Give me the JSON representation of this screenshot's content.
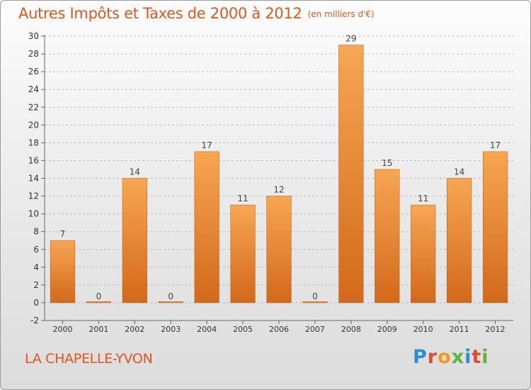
{
  "header": {
    "title": "Autres Impôts et Taxes de 2000 à 2012",
    "unit": "(en milliers d'€)"
  },
  "footer": {
    "commune": "LA CHAPELLE-YVON",
    "logo": "Proxiti",
    "logo_colors": [
      "#2a8fd6",
      "#e8482b",
      "#f39a1e",
      "#5fb33a",
      "#2a8fd6",
      "#e8482b",
      "#5fb33a"
    ]
  },
  "chart_data": {
    "type": "bar",
    "categories": [
      "2000",
      "2001",
      "2002",
      "2003",
      "2004",
      "2005",
      "2006",
      "2007",
      "2008",
      "2009",
      "2010",
      "2011",
      "2012"
    ],
    "values": [
      7,
      0,
      14,
      0,
      17,
      11,
      12,
      0,
      29,
      15,
      11,
      14,
      17
    ],
    "title": "Autres Impôts et Taxes de 2000 à 2012",
    "subtitle": "(en milliers d'€)",
    "ylim": [
      -2,
      30
    ],
    "yticks": [
      -2,
      0,
      2,
      4,
      6,
      8,
      10,
      12,
      14,
      16,
      18,
      20,
      22,
      24,
      26,
      28,
      30
    ],
    "grid": "horizontal dashed",
    "colors": {
      "bar_top": "#f7a654",
      "bar_bottom": "#d2691a",
      "axis": "#666666",
      "grid": "#bbbbbb"
    }
  }
}
